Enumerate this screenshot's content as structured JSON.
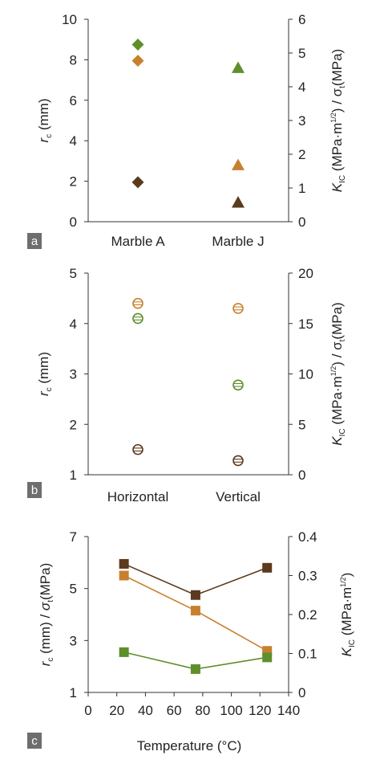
{
  "colors": {
    "dark": "#5b3a1e",
    "orange": "#c8802f",
    "green": "#5f8f2a",
    "axis": "#333333",
    "panel_label_bg": "#6e6e6e"
  },
  "chart_data": [
    {
      "panel": "a",
      "type": "scatter",
      "categories": [
        "Marble A",
        "Marble J"
      ],
      "ylabel_left": {
        "sym": "r",
        "sub": "c",
        "rest": " (mm)"
      },
      "ylabel_right": {
        "pre": "K",
        "presub": "IC",
        "mid": " (MPa·m",
        "sup": "1/2",
        "mid2": ") / σ",
        "sub2": "t",
        "post": "(MPa)"
      },
      "ylim_left": [
        0,
        10
      ],
      "ylim_right": [
        0,
        6
      ],
      "yticks_left": [
        "0",
        "2",
        "4",
        "6",
        "8",
        "10"
      ],
      "yticks_right": [
        "0",
        "1",
        "2",
        "3",
        "4",
        "5",
        "6"
      ],
      "series": [
        {
          "color": "green",
          "marker": "diamond",
          "points": [
            {
              "x": "Marble A",
              "y": 8.75
            }
          ]
        },
        {
          "color": "orange",
          "marker": "diamond",
          "points": [
            {
              "x": "Marble A",
              "y": 7.95
            }
          ]
        },
        {
          "color": "dark",
          "marker": "diamond",
          "points": [
            {
              "x": "Marble A",
              "y": 1.95
            }
          ]
        },
        {
          "color": "green",
          "marker": "triangle",
          "points": [
            {
              "x": "Marble J",
              "y": 7.6
            }
          ]
        },
        {
          "color": "orange",
          "marker": "triangle",
          "points": [
            {
              "x": "Marble J",
              "y": 2.8
            }
          ]
        },
        {
          "color": "dark",
          "marker": "triangle",
          "points": [
            {
              "x": "Marble J",
              "y": 0.95
            }
          ]
        }
      ]
    },
    {
      "panel": "b",
      "type": "scatter",
      "categories": [
        "Horizontal",
        "Vertical"
      ],
      "ylabel_left": {
        "sym": "r",
        "sub": "c",
        "rest": " (mm)"
      },
      "ylabel_right": {
        "pre": "K",
        "presub": "IC",
        "mid": " (MPa·m",
        "sup": "1/2",
        "mid2": ") / σ",
        "sub2": "t",
        "post": "(MPa)"
      },
      "ylim_left": [
        1,
        5
      ],
      "ylim_right": [
        0,
        20
      ],
      "yticks_left": [
        "1",
        "2",
        "3",
        "4",
        "5"
      ],
      "yticks_right": [
        "0",
        "5",
        "10",
        "15",
        "20"
      ],
      "series": [
        {
          "color": "orange",
          "marker": "hatched-circle",
          "points": [
            {
              "x": "Horizontal",
              "y": 4.4
            },
            {
              "x": "Vertical",
              "y": 4.3
            }
          ]
        },
        {
          "color": "green",
          "marker": "hatched-circle",
          "points": [
            {
              "x": "Horizontal",
              "y": 4.1
            },
            {
              "x": "Vertical",
              "y": 2.78
            }
          ]
        },
        {
          "color": "dark",
          "marker": "hatched-circle",
          "points": [
            {
              "x": "Horizontal",
              "y": 1.5
            },
            {
              "x": "Vertical",
              "y": 1.28
            }
          ]
        }
      ]
    },
    {
      "panel": "c",
      "type": "line",
      "xlabel": "Temperature (°C)",
      "xlim": [
        0,
        140
      ],
      "xticks": [
        "0",
        "20",
        "40",
        "60",
        "80",
        "100",
        "120",
        "140"
      ],
      "ylabel_left": {
        "sym": "r",
        "sub": "c",
        "rest": " (mm) / ",
        "sym2": "σ",
        "sub2": "t",
        "rest2": "(MPa)"
      },
      "ylabel_right": {
        "pre": "K",
        "presub": "IC",
        "mid": " (MPa·m",
        "sup": "1/2",
        "post": ")"
      },
      "ylim_left": [
        1,
        7
      ],
      "ylim_right": [
        0,
        0.4
      ],
      "yticks_left": [
        "1",
        "3",
        "5",
        "7"
      ],
      "yticks_right": [
        "0",
        "0.1",
        "0.2",
        "0.3",
        "0.4"
      ],
      "series": [
        {
          "color": "dark",
          "marker": "square",
          "x": [
            25,
            75,
            125
          ],
          "y": [
            5.95,
            4.75,
            5.8
          ]
        },
        {
          "color": "orange",
          "marker": "square",
          "x": [
            25,
            75,
            125
          ],
          "y": [
            5.5,
            4.15,
            2.6
          ]
        },
        {
          "color": "green",
          "marker": "square",
          "x": [
            25,
            75,
            125
          ],
          "y": [
            2.55,
            1.9,
            2.35
          ]
        }
      ]
    }
  ]
}
